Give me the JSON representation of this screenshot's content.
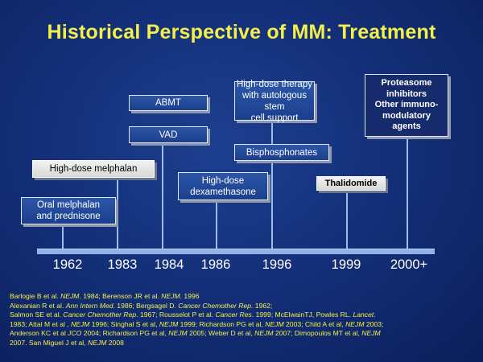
{
  "title": "Historical Perspective of MM: Treatment",
  "years": [
    "1962",
    "1983",
    "1984",
    "1986",
    "1996",
    "1999",
    "2000+"
  ],
  "boxes": {
    "oral_melphalan": [
      "Oral melphalan",
      "and prednisone"
    ],
    "high_dose_melphalan": "High-dose melphalan",
    "abmt": "ABMT",
    "vad": "VAD",
    "high_dose_dexamethasone": [
      "High-dose",
      "dexamethasone"
    ],
    "high_dose_therapy": [
      "High-dose therapy",
      "with autologous stem",
      "cell support"
    ],
    "bisphosphonates": "Bisphosphonates",
    "thalidomide": "Thalidomide",
    "proteasome": [
      "Proteasome",
      "inhibitors",
      "Other immuno-",
      "modulatory",
      "agents"
    ]
  },
  "references": {
    "line1": [
      "Barlogie B et al. ",
      "NEJM",
      ". 1984; Berenson JR et al. ",
      "NEJM",
      ". 1996"
    ],
    "line2": [
      "Alexanian  R et al. ",
      "Ann Intern Med",
      ". 1986; Bergsagel D. ",
      "Cancer Chemother Rep",
      ". 1962;"
    ],
    "line3": [
      "Salmon SE et al. ",
      "Cancer Chemother Rep",
      ". 1967; Rousselot P et al. ",
      "Cancer Res",
      ". 1999; McElwainTJ, Powles RL. ",
      "Lancet",
      "."
    ],
    "line4": [
      "1983; Attal M et al , ",
      "NEJM",
      " 1996; Singhal S et al, ",
      "NEJM",
      " 1999; Richardson  PG et al, ",
      "NEJM",
      " 2003; Child A et al, ",
      "NEJM",
      " 2003;"
    ],
    "line5": [
      "Anderson KC et al ",
      "JCO",
      " 2004;  Richardson PG et al, ",
      "NEJM",
      " 2005; Weber D et al, ",
      "NEJM",
      " 2007; Dimopoulos MT et al, ",
      "NEJM",
      ""
    ],
    "line6": [
      "2007. San Miguel J et al, ",
      "NEJM",
      " 2008"
    ]
  },
  "colors": {
    "title": "#f4f04a",
    "background": "#14307a",
    "axis": "#8fb3e8",
    "box_fill": "#1b3f8d",
    "box_light": "#e6e6e6"
  }
}
